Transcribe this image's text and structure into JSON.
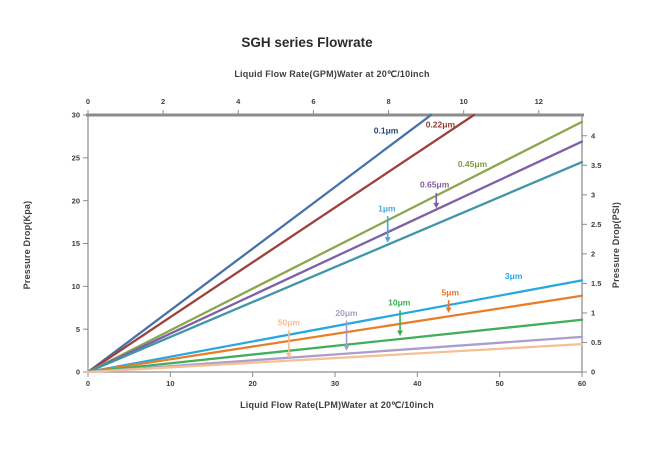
{
  "chart_data": {
    "type": "line",
    "title": "SGH series Flowrate",
    "x_axis_top": {
      "label": "Liquid Flow Rate(GPM)Water  at  20℃/10inch",
      "unit": "GPM",
      "ticks": [
        0,
        2,
        4,
        6,
        8,
        10,
        12
      ],
      "max": 13.15
    },
    "x_axis_bottom": {
      "label": "Liquid Flow Rate(LPM)Water  at  20℃/10inch",
      "unit": "LPM",
      "ticks": [
        0,
        10,
        20,
        30,
        40,
        50,
        60
      ],
      "max": 60
    },
    "y_axis_left": {
      "label": "Pressure Drop(Kpa)",
      "unit": "Kpa",
      "ticks": [
        0,
        5,
        10,
        15,
        20,
        25,
        30
      ],
      "max": 30
    },
    "y_axis_right": {
      "label": "Pressure Drop(PSI)",
      "unit": "PSI",
      "ticks": [
        "0",
        "0.5",
        "1",
        "1.5",
        "2",
        "2.5",
        "3",
        "3.5",
        "4"
      ],
      "max": 4.35,
      "psi_per_kpa": 0.14504
    },
    "grid": false,
    "legend": "inline-labels",
    "series": [
      {
        "name": "0.1μm",
        "line_color": "#4672AC",
        "label_color": "#204878",
        "points_lpm_kpa": [
          [
            0,
            0
          ],
          [
            60,
            43.2
          ]
        ],
        "label_at": {
          "lpm": 36.2,
          "kpa": 28.2
        },
        "arrow": null
      },
      {
        "name": "0.22μm",
        "line_color": "#9E413C",
        "label_color": "#953B35",
        "points_lpm_kpa": [
          [
            0,
            0
          ],
          [
            60,
            38.4
          ]
        ],
        "label_at": {
          "lpm": 42.8,
          "kpa": 28.9
        },
        "arrow": null
      },
      {
        "name": "0.45μm",
        "line_color": "#8CA64E",
        "label_color": "#7F9A40",
        "points_lpm_kpa": [
          [
            0,
            0
          ],
          [
            60,
            29.2
          ]
        ],
        "label_at": {
          "lpm": 46.7,
          "kpa": 24.3
        },
        "arrow": null
      },
      {
        "name": "0.65μm",
        "line_color": "#7D60A6",
        "label_color": "#7D60A6",
        "points_lpm_kpa": [
          [
            0,
            0
          ],
          [
            60,
            26.9
          ]
        ],
        "label_at": {
          "lpm": 42.1,
          "kpa": 21.9
        },
        "arrow": {
          "lpm": 42.3,
          "from_kpa": 20.9,
          "to_kpa": 19.1
        }
      },
      {
        "name": "1μm",
        "line_color": "#3E96A8",
        "label_color": "#45AADF",
        "points_lpm_kpa": [
          [
            0,
            0
          ],
          [
            60,
            24.5
          ]
        ],
        "label_at": {
          "lpm": 36.3,
          "kpa": 19.1
        },
        "arrow": {
          "lpm": 36.4,
          "from_kpa": 18.2,
          "to_kpa": 15.1
        }
      },
      {
        "name": "3μm",
        "line_color": "#29A8E0",
        "label_color": "#29A8E0",
        "points_lpm_kpa": [
          [
            0,
            0
          ],
          [
            60,
            10.7
          ]
        ],
        "label_at": {
          "lpm": 51.7,
          "kpa": 11.2
        },
        "arrow": null
      },
      {
        "name": "5μm",
        "line_color": "#E87E2A",
        "label_color": "#E8752A",
        "points_lpm_kpa": [
          [
            0,
            0
          ],
          [
            60,
            8.9
          ]
        ],
        "label_at": {
          "lpm": 44.0,
          "kpa": 9.3
        },
        "arrow": {
          "lpm": 43.8,
          "from_kpa": 8.4,
          "to_kpa": 6.9
        }
      },
      {
        "name": "10μm",
        "line_color": "#41AE5A",
        "label_color": "#3BAE54",
        "points_lpm_kpa": [
          [
            0,
            0
          ],
          [
            60,
            6.1
          ]
        ],
        "label_at": {
          "lpm": 37.8,
          "kpa": 8.1
        },
        "arrow": {
          "lpm": 37.9,
          "from_kpa": 7.2,
          "to_kpa": 4.2
        }
      },
      {
        "name": "20μm",
        "line_color": "#AB9ECB",
        "label_color": "#A79BC8",
        "points_lpm_kpa": [
          [
            0,
            0
          ],
          [
            60,
            4.1
          ]
        ],
        "label_at": {
          "lpm": 31.4,
          "kpa": 6.9
        },
        "arrow": {
          "lpm": 31.4,
          "from_kpa": 6.0,
          "to_kpa": 2.5
        }
      },
      {
        "name": "50μm",
        "line_color": "#F6C095",
        "label_color": "#F6BE92",
        "points_lpm_kpa": [
          [
            0,
            0
          ],
          [
            60,
            3.25
          ]
        ],
        "label_at": {
          "lpm": 24.4,
          "kpa": 5.75
        },
        "arrow": {
          "lpm": 24.4,
          "from_kpa": 4.9,
          "to_kpa": 1.6
        }
      }
    ]
  }
}
